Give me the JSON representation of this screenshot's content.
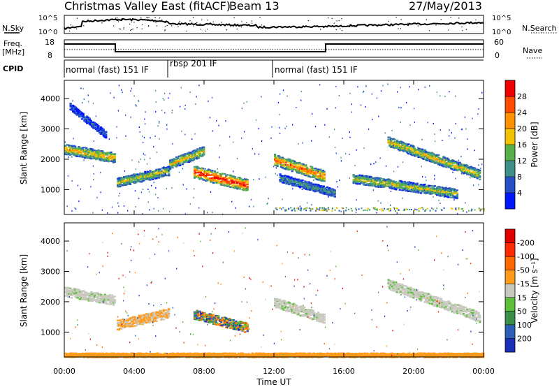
{
  "header": {
    "title": "Christmas Valley East (fitACF)",
    "beam": "Beam 13",
    "date": "27/May/2013"
  },
  "small_panels": {
    "sky": {
      "left_label": "N.Sky",
      "right_label": "N.Search",
      "left_ticks": [
        "10^5",
        "10^0"
      ],
      "right_ticks": [
        "10^5",
        "10^0"
      ]
    },
    "freq": {
      "left_label_1": "Freq.",
      "left_label_2": "[MHz]",
      "right_label": "Nave",
      "left_ticks": [
        "18",
        "8"
      ],
      "right_ticks": [
        "60",
        "0"
      ]
    },
    "cpid": {
      "label": "CPID",
      "modes": [
        {
          "label": "normal (fast) 151 IF",
          "start_hour": 0,
          "end_hour": 6.1
        },
        {
          "label": "rbsp 201 IF",
          "start_hour": 6.1,
          "end_hour": 12.0
        },
        {
          "label": "normal (fast) 151 IF",
          "start_hour": 12.0,
          "end_hour": 24
        }
      ]
    }
  },
  "chart_data": [
    {
      "type": "heatmap",
      "name": "power",
      "ylabel": "Slant Range [km]",
      "ylim": [
        180,
        4600
      ],
      "yticks": [
        1000,
        2000,
        3000,
        4000
      ],
      "xlim": [
        0,
        24
      ],
      "colorbar": {
        "label": "Power [dB]",
        "ticks": [
          "4",
          "8",
          "12",
          "16",
          "20",
          "24",
          "28"
        ],
        "colors": [
          "#0016ff",
          "#264fc8",
          "#3e8e8a",
          "#58b04c",
          "#f2c200",
          "#ff9000",
          "#ff4a00",
          "#f00000"
        ]
      },
      "features": [
        {
          "start_hour": 0.0,
          "end_hour": 2.9,
          "range_start_km": 2350,
          "range_end_km": 2060,
          "level": 0.65
        },
        {
          "start_hour": 3.0,
          "end_hour": 6.0,
          "range_start_km": 1250,
          "range_end_km": 1650,
          "level": 0.55
        },
        {
          "start_hour": 6.0,
          "end_hour": 8.0,
          "range_start_km": 1850,
          "range_end_km": 2300,
          "level": 0.6
        },
        {
          "start_hour": 7.4,
          "end_hour": 10.5,
          "range_start_km": 1600,
          "range_end_km": 1150,
          "level": 0.95
        },
        {
          "start_hour": 12.0,
          "end_hour": 14.9,
          "range_start_km": 2000,
          "range_end_km": 1450,
          "level": 0.8
        },
        {
          "start_hour": 12.3,
          "end_hour": 15.5,
          "range_start_km": 1400,
          "range_end_km": 900,
          "level": 0.35
        },
        {
          "start_hour": 16.5,
          "end_hour": 22.5,
          "range_start_km": 1380,
          "range_end_km": 880,
          "level": 0.55
        },
        {
          "start_hour": 18.5,
          "end_hour": 23.8,
          "range_start_km": 2600,
          "range_end_km": 1500,
          "level": 0.6
        },
        {
          "start_hour": 0.3,
          "end_hour": 2.4,
          "range_start_km": 3750,
          "range_end_km": 2800,
          "level": 0.2
        }
      ]
    },
    {
      "type": "heatmap",
      "name": "velocity",
      "ylabel": "Slant Range [km]",
      "ylim": [
        180,
        4600
      ],
      "yticks": [
        1000,
        2000,
        3000,
        4000
      ],
      "xlim": [
        0,
        24
      ],
      "xlabel": "Time UT",
      "xticks": [
        "00:00",
        "04:00",
        "08:00",
        "12:00",
        "16:00",
        "20:00",
        "00:00"
      ],
      "colorbar": {
        "label": "Velocity [m s⁻¹]",
        "ticks": [
          "200",
          "100",
          "50",
          "15",
          "-15",
          "-50",
          "-100",
          "-200"
        ],
        "colors": [
          "#1c2fb8",
          "#2e5fb8",
          "#3c8f4a",
          "#5cbf3a",
          "#c9c9c0",
          "#ff9b1a",
          "#ff6a00",
          "#ff2a00",
          "#e00000"
        ]
      },
      "features": [
        {
          "start_hour": 0.0,
          "end_hour": 2.9,
          "range_start_km": 2350,
          "range_end_km": 2060,
          "level": "-15..15"
        },
        {
          "start_hour": 3.0,
          "end_hour": 6.0,
          "range_start_km": 1250,
          "range_end_km": 1650,
          "level": "-15..-50"
        },
        {
          "start_hour": 7.4,
          "end_hour": 10.5,
          "range_start_km": 1600,
          "range_end_km": 1150,
          "level": "mixed 50..200 and -50"
        },
        {
          "start_hour": 12.0,
          "end_hour": 14.9,
          "range_start_km": 2000,
          "range_end_km": 1450,
          "level": "-15..15"
        },
        {
          "start_hour": 18.5,
          "end_hour": 23.8,
          "range_start_km": 2600,
          "range_end_km": 1500,
          "level": "-15..15"
        },
        {
          "start_hour": 0.0,
          "end_hour": 24.0,
          "range_start_km": 260,
          "range_end_km": 260,
          "level": "-50"
        }
      ]
    }
  ]
}
